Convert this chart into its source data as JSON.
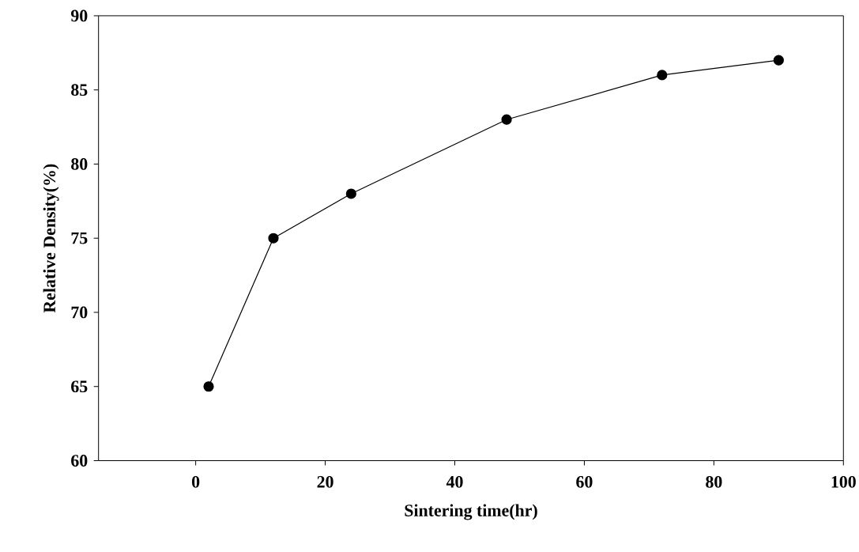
{
  "chart_data": {
    "type": "line",
    "xlabel": "Sintering time(hr)",
    "ylabel": "Relative Density(%)",
    "x": [
      2,
      12,
      24,
      48,
      72,
      90
    ],
    "series": [
      {
        "color": "#000000",
        "values": [
          65,
          75,
          78,
          83,
          86,
          87
        ]
      }
    ],
    "xlim": [
      -15,
      100
    ],
    "ylim": [
      60,
      90
    ],
    "xticks": [
      0,
      20,
      40,
      60,
      80,
      100
    ],
    "yticks": [
      60,
      65,
      70,
      75,
      80,
      85,
      90
    ],
    "marker": "circle",
    "line_style": "solid"
  }
}
